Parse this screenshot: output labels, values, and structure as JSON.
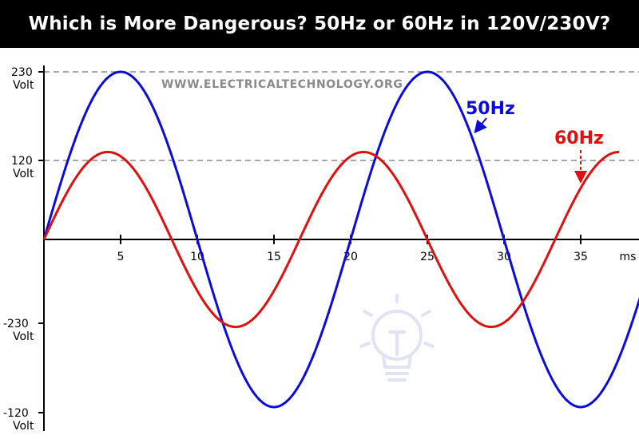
{
  "header": {
    "title": "Which is More Dangerous? 50Hz or 60Hz in 120V/230V?"
  },
  "watermark": "WWW.ELECTRICALTECHNOLOGY.ORG",
  "colors": {
    "title_bar": "#000000",
    "title_text": "#ffffff",
    "series_50hz": "#0b0bde",
    "series_60hz": "#e01010",
    "reference_line": "#8c8c8c",
    "watermark": "#8a8a8a",
    "bulb_icon": "#e2e2f5"
  },
  "icons": [
    "light-bulb-icon"
  ],
  "chart_data": {
    "type": "line",
    "title": "Which is More Dangerous? 50Hz or 60Hz in 120V/230V?",
    "x_unit_label": "ms",
    "xlim": [
      0,
      39
    ],
    "x_ticks": [
      5,
      10,
      15,
      20,
      25,
      30,
      35
    ],
    "y_ticks": [
      {
        "value": "230",
        "unit": "Volt"
      },
      {
        "value": "120",
        "unit": "Volt"
      },
      {
        "value": "-230",
        "unit": "Volt"
      },
      {
        "value": "-120",
        "unit": "Volt"
      }
    ],
    "reference_lines": [
      "230",
      "120"
    ],
    "grid": false,
    "series": [
      {
        "name": "50Hz",
        "frequency_hz": 50,
        "amplitude_volt": 230,
        "x_end_ms": 39,
        "label_arrow": "solid"
      },
      {
        "name": "60Hz",
        "frequency_hz": 60,
        "amplitude_volt": 120,
        "x_end_ms": 37.5,
        "label_arrow": "dashed"
      }
    ]
  }
}
